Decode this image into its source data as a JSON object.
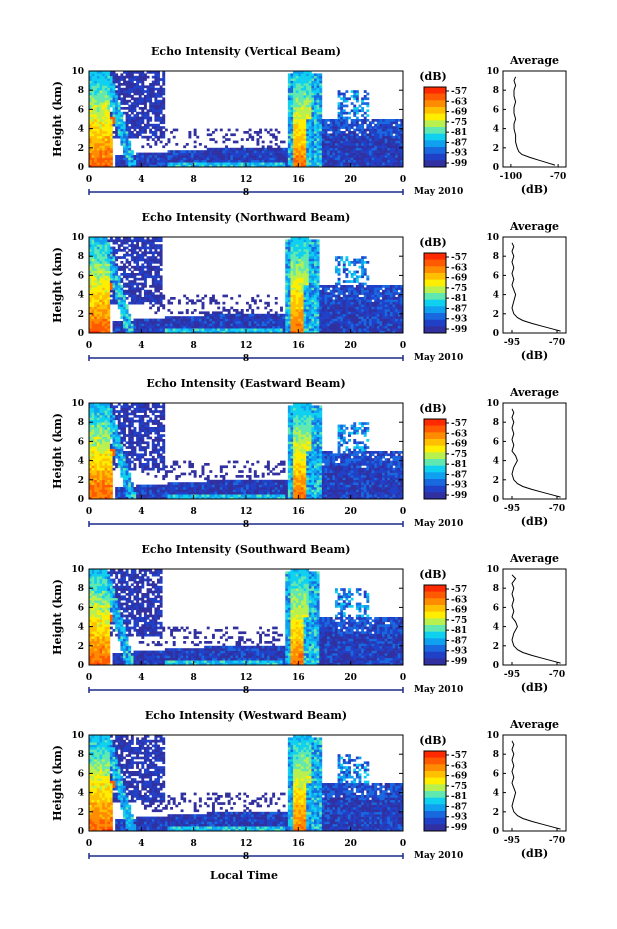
{
  "figure": {
    "xlabel": "Local Time",
    "ylabel": "Height (km)",
    "date_label": "May 2010",
    "colorbar_unit": "(dB)",
    "average_title": "Average",
    "average_xlabel": "(dB)"
  },
  "colorbar_ticks": [
    "-57",
    "-63",
    "-69",
    "-75",
    "-81",
    "-87",
    "-93",
    "-99"
  ],
  "colorbar_colors": [
    "#ff2a00",
    "#ff5a00",
    "#ff8c00",
    "#ffc000",
    "#ffee00",
    "#b8f050",
    "#60e8b0",
    "#10d0f0",
    "#10a0f0",
    "#1868e0",
    "#2040c8",
    "#3030a0"
  ],
  "chart_data": [
    {
      "type": "heatmap",
      "title": "Echo Intensity (Vertical Beam)",
      "xticks": [
        "0",
        "4",
        "8",
        "12",
        "16",
        "20",
        "0"
      ],
      "day_label": "8",
      "yticks": [
        "0",
        "2",
        "4",
        "6",
        "8",
        "10"
      ],
      "xlim": [
        0,
        24
      ],
      "ylim": [
        0,
        10
      ],
      "average": {
        "type": "line",
        "title": "Average",
        "xlabel": "(dB)",
        "xticks": [
          "-100",
          "-70"
        ],
        "xlim": [
          -105,
          -65
        ],
        "ylim": [
          0,
          10
        ],
        "x": [
          -72,
          -76,
          -82,
          -88,
          -93,
          -95,
          -96,
          -97,
          -97,
          -98,
          -98,
          -97,
          -98,
          -98,
          -97,
          -98,
          -98,
          -97,
          -98,
          -97
        ],
        "y": [
          0.2,
          0.4,
          0.7,
          1.0,
          1.3,
          1.6,
          2.0,
          2.6,
          3.3,
          4.0,
          4.5,
          5.0,
          5.6,
          6.2,
          6.8,
          7.4,
          8.0,
          8.5,
          9.0,
          9.4
        ]
      }
    },
    {
      "type": "heatmap",
      "title": "Echo Intensity (Northward Beam)",
      "xticks": [
        "0",
        "4",
        "8",
        "12",
        "16",
        "20",
        "0"
      ],
      "day_label": "8",
      "yticks": [
        "0",
        "2",
        "4",
        "6",
        "8",
        "10"
      ],
      "xlim": [
        0,
        24
      ],
      "ylim": [
        0,
        10
      ],
      "average": {
        "type": "line",
        "title": "Average",
        "xlabel": "(dB)",
        "xticks": [
          "-95",
          "-70"
        ],
        "xlim": [
          -100,
          -65
        ],
        "ylim": [
          0,
          10
        ],
        "x": [
          -68,
          -72,
          -78,
          -84,
          -89,
          -92,
          -94,
          -95,
          -94,
          -93,
          -94,
          -95,
          -94,
          -95,
          -94,
          -95,
          -94,
          -95,
          -94,
          -95
        ],
        "y": [
          0.2,
          0.4,
          0.7,
          1.0,
          1.3,
          1.6,
          2.0,
          2.6,
          3.3,
          4.0,
          4.5,
          5.0,
          5.6,
          6.2,
          6.8,
          7.4,
          8.0,
          8.5,
          9.0,
          9.4
        ]
      }
    },
    {
      "type": "heatmap",
      "title": "Echo Intensity (Eastward Beam)",
      "xticks": [
        "0",
        "4",
        "8",
        "12",
        "16",
        "20",
        "0"
      ],
      "day_label": "8",
      "yticks": [
        "0",
        "2",
        "4",
        "6",
        "8",
        "10"
      ],
      "xlim": [
        0,
        24
      ],
      "ylim": [
        0,
        10
      ],
      "average": {
        "type": "line",
        "title": "Average",
        "xlabel": "(dB)",
        "xticks": [
          "-95",
          "-70"
        ],
        "xlim": [
          -100,
          -65
        ],
        "ylim": [
          0,
          10
        ],
        "x": [
          -68,
          -72,
          -78,
          -84,
          -89,
          -92,
          -94,
          -95,
          -94,
          -92,
          -93,
          -95,
          -94,
          -95,
          -94,
          -95,
          -94,
          -95,
          -94,
          -95
        ],
        "y": [
          0.2,
          0.4,
          0.7,
          1.0,
          1.3,
          1.6,
          2.0,
          2.6,
          3.3,
          4.0,
          4.5,
          5.0,
          5.6,
          6.2,
          6.8,
          7.4,
          8.0,
          8.5,
          9.0,
          9.4
        ]
      }
    },
    {
      "type": "heatmap",
      "title": "Echo Intensity (Southward Beam)",
      "xticks": [
        "0",
        "4",
        "8",
        "12",
        "16",
        "20",
        "0"
      ],
      "day_label": "8",
      "yticks": [
        "0",
        "2",
        "4",
        "6",
        "8",
        "10"
      ],
      "xlim": [
        0,
        24
      ],
      "ylim": [
        0,
        10
      ],
      "average": {
        "type": "line",
        "title": "Average",
        "xlabel": "(dB)",
        "xticks": [
          "-95",
          "-70"
        ],
        "xlim": [
          -100,
          -65
        ],
        "ylim": [
          0,
          10
        ],
        "x": [
          -68,
          -72,
          -78,
          -84,
          -89,
          -92,
          -94,
          -95,
          -94,
          -92,
          -93,
          -95,
          -94,
          -95,
          -94,
          -95,
          -94,
          -95,
          -93,
          -95
        ],
        "y": [
          0.2,
          0.4,
          0.7,
          1.0,
          1.3,
          1.6,
          2.0,
          2.6,
          3.3,
          4.0,
          4.5,
          5.0,
          5.6,
          6.2,
          6.8,
          7.4,
          8.0,
          8.5,
          9.0,
          9.4
        ]
      }
    },
    {
      "type": "heatmap",
      "title": "Echo Intensity (Westward Beam)",
      "xticks": [
        "0",
        "4",
        "8",
        "12",
        "16",
        "20",
        "0"
      ],
      "day_label": "8",
      "yticks": [
        "0",
        "2",
        "4",
        "6",
        "8",
        "10"
      ],
      "xlim": [
        0,
        24
      ],
      "ylim": [
        0,
        10
      ],
      "average": {
        "type": "line",
        "title": "Average",
        "xlabel": "(dB)",
        "xticks": [
          "-95",
          "-70"
        ],
        "xlim": [
          -100,
          -65
        ],
        "ylim": [
          0,
          10
        ],
        "x": [
          -68,
          -72,
          -78,
          -84,
          -89,
          -92,
          -94,
          -95,
          -94,
          -93,
          -94,
          -95,
          -94,
          -95,
          -94,
          -95,
          -94,
          -95,
          -94,
          -95
        ],
        "y": [
          0.2,
          0.4,
          0.7,
          1.0,
          1.3,
          1.6,
          2.0,
          2.6,
          3.3,
          4.0,
          4.5,
          5.0,
          5.6,
          6.2,
          6.8,
          7.4,
          8.0,
          8.5,
          9.0,
          9.4
        ]
      }
    }
  ]
}
